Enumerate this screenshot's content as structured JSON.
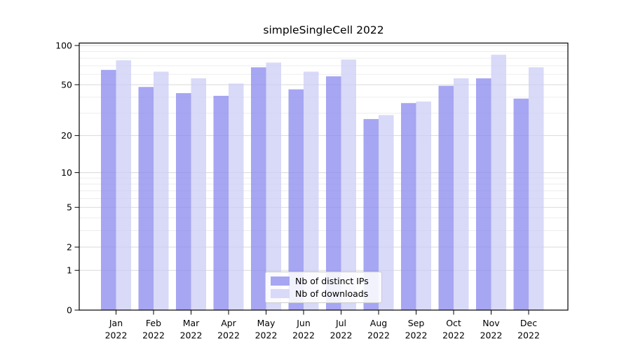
{
  "chart_data": {
    "type": "bar",
    "title": "simpleSingleCell 2022",
    "categories": [
      "Jan 2022",
      "Feb 2022",
      "Mar 2022",
      "Apr 2022",
      "May 2022",
      "Jun 2022",
      "Jul 2022",
      "Aug 2022",
      "Sep 2022",
      "Oct 2022",
      "Nov 2022",
      "Dec 2022"
    ],
    "series": [
      {
        "name": "Nb of distinct IPs",
        "color": "#8888ee",
        "values": [
          65,
          48,
          43,
          41,
          68,
          46,
          58,
          27,
          36,
          49,
          56,
          39
        ]
      },
      {
        "name": "Nb of downloads",
        "color": "#ccccf5",
        "values": [
          77,
          63,
          56,
          51,
          74,
          63,
          78,
          29,
          37,
          56,
          85,
          68
        ]
      }
    ],
    "bar_opacity": 0.75,
    "yscale": "log1p",
    "ylim": [
      0,
      104
    ],
    "y_ticks": [
      0,
      1,
      2,
      5,
      10,
      20,
      50,
      100
    ],
    "y_minor_ticks": [
      3,
      4,
      6,
      7,
      8,
      9,
      30,
      40,
      60,
      70,
      80,
      90
    ],
    "grid": true,
    "legend_position": "lower-center",
    "xlabel": "",
    "ylabel": "",
    "colors": {
      "axis": "#000000",
      "text": "#000000",
      "major_grid": "#d9d9d9",
      "minor_grid": "#ededed"
    }
  }
}
